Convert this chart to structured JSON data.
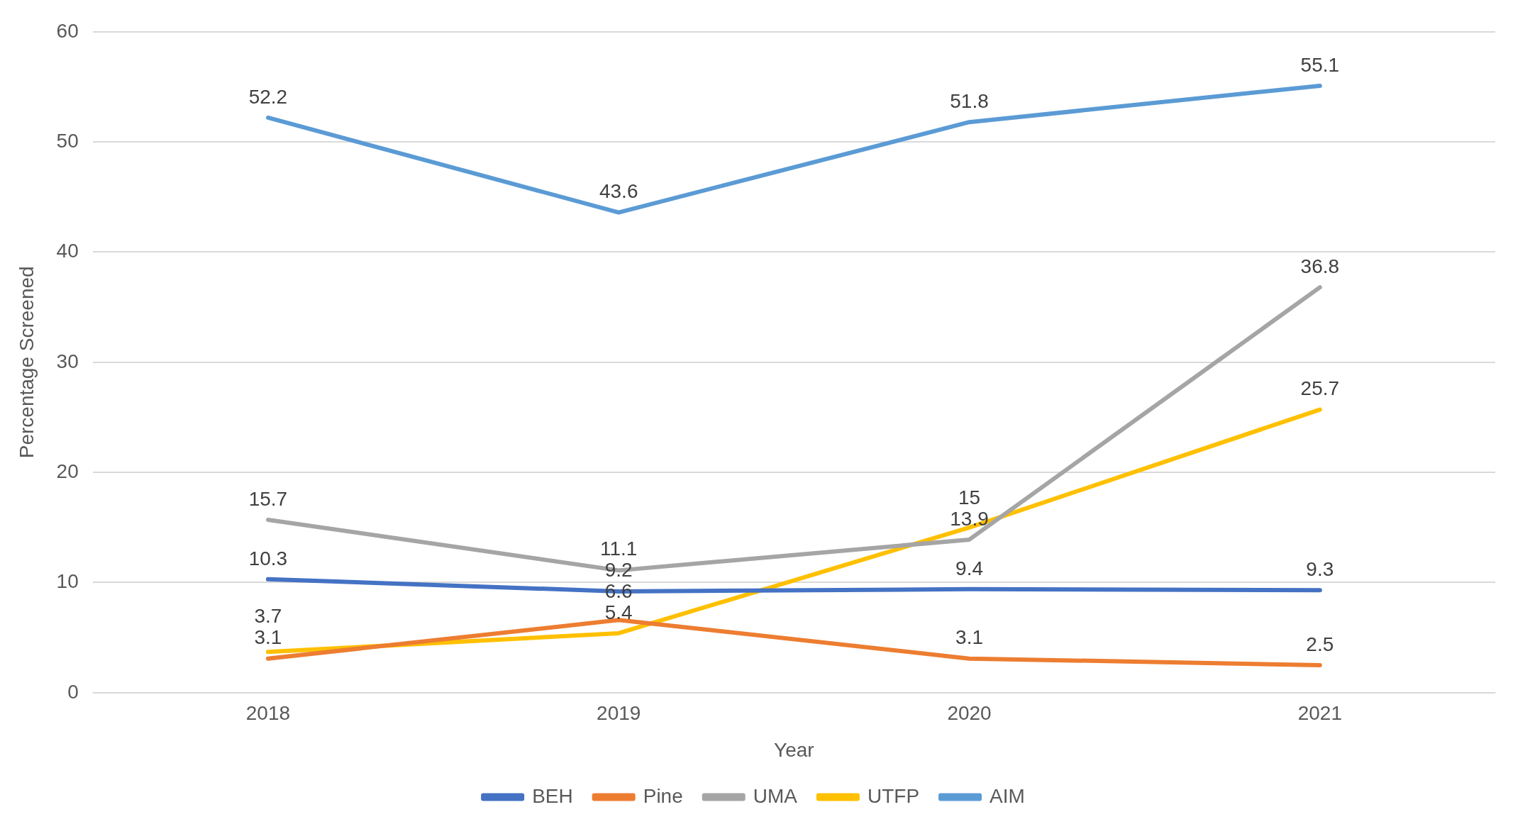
{
  "chart_data": {
    "type": "line",
    "xlabel": "Year",
    "ylabel": "Percentage Screened",
    "categories": [
      "2018",
      "2019",
      "2020",
      "2021"
    ],
    "series": [
      {
        "name": "BEH",
        "color": "#4472c4",
        "values": [
          10.3,
          9.2,
          9.4,
          9.3
        ]
      },
      {
        "name": "Pine",
        "color": "#ed7d31",
        "values": [
          3.1,
          6.6,
          3.1,
          2.5
        ]
      },
      {
        "name": "UMA",
        "color": "#a5a5a5",
        "values": [
          15.7,
          11.1,
          13.9,
          36.8
        ]
      },
      {
        "name": "UTFP",
        "color": "#ffc000",
        "values": [
          3.7,
          5.4,
          15,
          25.7
        ]
      },
      {
        "name": "AIM",
        "color": "#5b9bd5",
        "values": [
          52.2,
          43.6,
          51.8,
          55.1
        ]
      }
    ],
    "ylim": [
      0,
      60
    ],
    "yticks": [
      0,
      10,
      20,
      30,
      40,
      50,
      60
    ],
    "grid": "y",
    "legend": "bottom",
    "data_labels": true,
    "marker": "none",
    "line_style": "solid"
  }
}
